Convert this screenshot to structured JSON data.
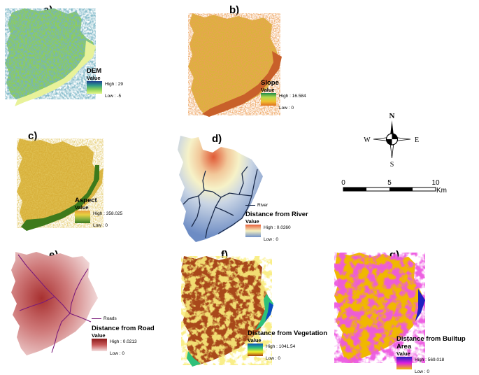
{
  "panels": {
    "a": {
      "label": "a)",
      "title": "DEM",
      "value_label": "Value",
      "high": "High : 29",
      "low": "Low : -5"
    },
    "b": {
      "label": "b)",
      "title": "Slope",
      "value_label": "Value",
      "high": "High : 16.584",
      "low": "Low : 0"
    },
    "c": {
      "label": "c)",
      "title": "Aspect",
      "value_label": "Value",
      "high": "High : 358.025",
      "low": "Low : 0"
    },
    "d": {
      "label": "d)",
      "title": "Distance from River",
      "line_label": "River",
      "value_label": "Value",
      "high": "High : 0.0260",
      "low": "Low : 0"
    },
    "e": {
      "label": "e)",
      "title": "Distance from Road",
      "line_label": "Roads",
      "value_label": "Value",
      "high": "High : 0.0213",
      "low": "Low : 0"
    },
    "f": {
      "label": "f)",
      "title": "Distance from Vegetation",
      "value_label": "Value",
      "high": "High : 1041.54",
      "low": "Low : 0"
    },
    "g": {
      "label": "g)",
      "title": "Distance from Builtup Area",
      "value_label": "Value",
      "high": "High : 569.018",
      "low": "Low : 0"
    }
  },
  "compass": {
    "n": "N",
    "s": "S",
    "e": "E",
    "w": "W"
  },
  "scale": {
    "ticks": [
      "0",
      "5",
      "10"
    ],
    "unit": "Km"
  },
  "colors": {
    "dem_ramp": [
      "#1f3f8f",
      "#2f9a8a",
      "#8fd35a",
      "#e6f58a"
    ],
    "slope_ramp": [
      "#1a8a4a",
      "#b8d84a",
      "#f0c030",
      "#e07020"
    ],
    "aspect_ramp": [
      "#e8a040",
      "#e8d040",
      "#8ab040",
      "#3a7a20"
    ],
    "river_ramp": [
      "#e8603a",
      "#f5f0c0",
      "#7090c8"
    ],
    "road_ramp": [
      "#8b1a1a",
      "#c85a5a",
      "#f4e0e0"
    ],
    "veg_ramp": [
      "#0a4fc0",
      "#2ec07a",
      "#f0f02a",
      "#a83a10"
    ],
    "builtup_ramp": [
      "#2020c0",
      "#e020e0",
      "#f0c000"
    ],
    "river_line": "#1a2a4a",
    "road_line": "#7a1a7a"
  }
}
